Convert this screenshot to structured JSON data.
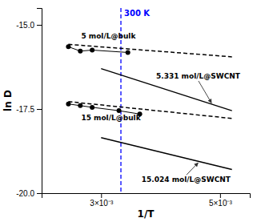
{
  "chart_data": {
    "type": "line",
    "title": "300 K",
    "xlabel": "1/T",
    "ylabel": "ln D",
    "xlim": [
      0.002,
      0.0055
    ],
    "ylim": [
      -20.0,
      -14.5
    ],
    "xticks": [
      {
        "value": 0.003,
        "label": "3×10⁻³"
      },
      {
        "value": 0.005,
        "label": "5×10⁻³"
      }
    ],
    "yticks": [
      {
        "value": -20.0,
        "label": "-20.0"
      },
      {
        "value": -17.5,
        "label": "-17.5"
      },
      {
        "value": -15.0,
        "label": "-15.0"
      }
    ],
    "vline": {
      "x": 0.003333,
      "color": "blue",
      "line_style": "dashed"
    },
    "series": [
      {
        "x": [
          0.00245,
          0.0052
        ],
        "values": [
          -15.58,
          -15.95
        ],
        "color": "black",
        "line_style": "dashed"
      },
      {
        "x": [
          0.00245,
          0.00265,
          0.00285,
          0.00345
        ],
        "values": [
          -15.65,
          -15.78,
          -15.75,
          -15.82
        ],
        "color": "black",
        "line_style": "solid",
        "marker": "circle"
      },
      {
        "x": [
          0.00245,
          0.0052
        ],
        "values": [
          -17.28,
          -17.78
        ],
        "color": "black",
        "line_style": "dashed"
      },
      {
        "x": [
          0.00245,
          0.00265,
          0.00285,
          0.0033,
          0.00365
        ],
        "values": [
          -17.35,
          -17.4,
          -17.45,
          -17.55,
          -17.65
        ],
        "color": "black",
        "line_style": "solid",
        "marker": "circle"
      },
      {
        "x": [
          0.003,
          0.0052
        ],
        "values": [
          -16.3,
          -17.55
        ],
        "color": "black",
        "line_style": "solid"
      },
      {
        "x": [
          0.003,
          0.0052
        ],
        "values": [
          -18.35,
          -19.3
        ],
        "color": "black",
        "line_style": "solid"
      }
    ],
    "annotations": [
      "5 mol/L@bulk",
      "15 mol/L@bulk",
      "5.331 mol/L@SWCNT",
      "15.024 mol/L@SWCNT"
    ]
  }
}
